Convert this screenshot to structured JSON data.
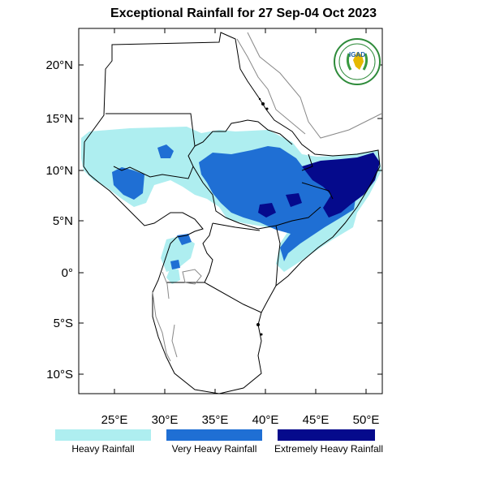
{
  "title": "Exceptional Rainfall for 27 Sep-04 Oct 2023",
  "lat_ticks": [
    "20°N",
    "15°N",
    "10°N",
    "5°N",
    "0°",
    "5°S",
    "10°S"
  ],
  "lon_ticks": [
    "25°E",
    "30°E",
    "35°E",
    "40°E",
    "45°E",
    "50°E"
  ],
  "legend": [
    {
      "label": "Heavy Rainfall",
      "color": "#aeeef0"
    },
    {
      "label": "Very Heavy Rainfall",
      "color": "#1f6fd4"
    },
    {
      "label": "Extremely Heavy Rainfall",
      "color": "#050a8c"
    }
  ],
  "logo": {
    "text": "IGAD",
    "icon": "igad-logo"
  }
}
